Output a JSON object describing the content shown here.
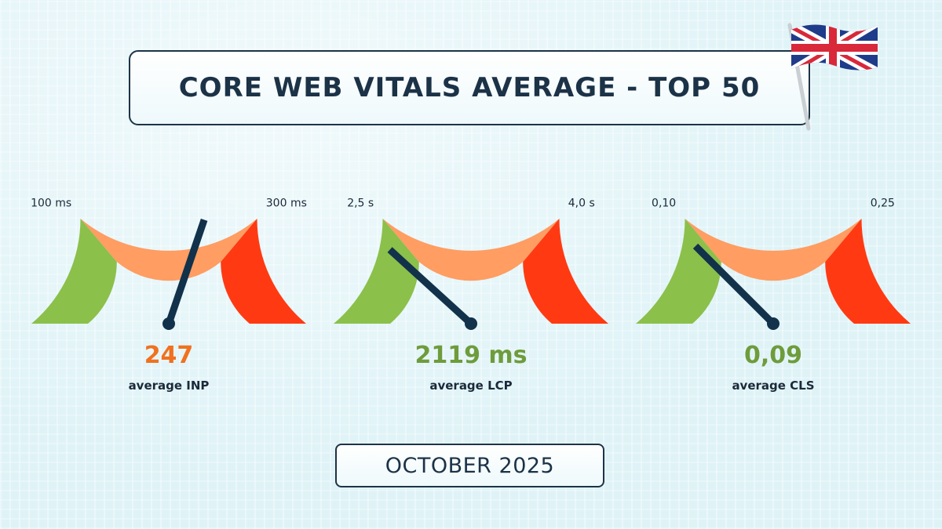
{
  "header": {
    "title": "CORE WEB VITALS AVERAGE - TOP 50"
  },
  "footer": {
    "date": "OCTOBER 2025"
  },
  "colors": {
    "good": "#8bc04b",
    "needs_improvement": "#ff9d62",
    "poor": "#ff3a12",
    "needle": "#12314a",
    "accent_orange": "#f0711f",
    "accent_green": "#6e9c3c"
  },
  "flag_icon": "united-kingdom-flag-icon",
  "chart_data": [
    {
      "type": "gauge",
      "metric": "INP",
      "value": 247,
      "value_text": "247",
      "label": "average INP",
      "thresholds": [
        100,
        300
      ],
      "threshold_labels": [
        "100 ms",
        "300 ms"
      ],
      "range": [
        0,
        400
      ],
      "value_color": "#f0711f"
    },
    {
      "type": "gauge",
      "metric": "LCP",
      "value": 2119,
      "value_text": "2119 ms",
      "label": "average LCP",
      "thresholds": [
        2500,
        4000
      ],
      "threshold_labels": [
        "2,5 s",
        "4,0 s"
      ],
      "range": [
        0,
        6500
      ],
      "value_color": "#6e9c3c"
    },
    {
      "type": "gauge",
      "metric": "CLS",
      "value": 0.09,
      "value_text": "0,09",
      "label": "average CLS",
      "thresholds": [
        0.1,
        0.25
      ],
      "threshold_labels": [
        "0,10",
        "0,25"
      ],
      "range": [
        0,
        0.4
      ],
      "value_color": "#6e9c3c"
    }
  ]
}
